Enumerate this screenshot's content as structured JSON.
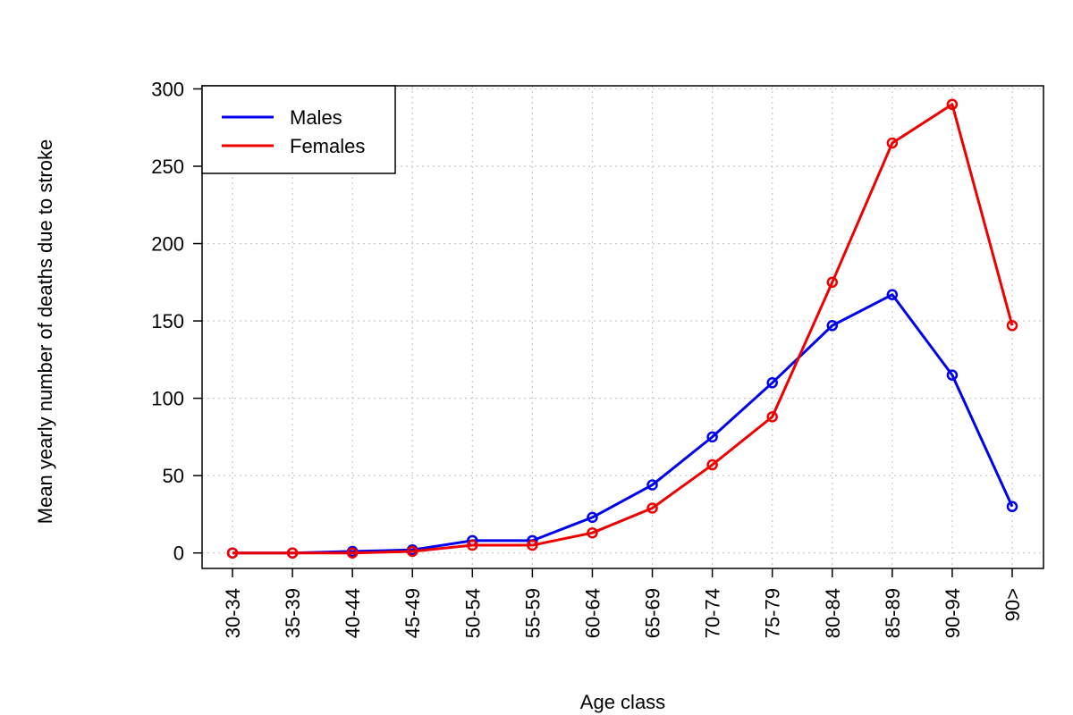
{
  "chart_data": {
    "type": "line",
    "title": "",
    "xlabel": "Age class",
    "ylabel": "Mean yearly number of deaths due to stroke",
    "categories": [
      "30-34",
      "35-39",
      "40-44",
      "45-49",
      "50-54",
      "55-59",
      "60-64",
      "65-69",
      "70-74",
      "75-79",
      "80-84",
      "85-89",
      "90-94",
      "90>"
    ],
    "ylim": [
      -10,
      302
    ],
    "yticks": [
      0,
      50,
      100,
      150,
      200,
      250,
      300
    ],
    "grid": true,
    "legend": "top-left",
    "series": [
      {
        "name": "Males",
        "color": "#0000ee",
        "values": [
          0,
          0,
          1,
          2,
          8,
          8,
          23,
          44,
          75,
          110,
          147,
          167,
          115,
          30
        ]
      },
      {
        "name": "Females",
        "color": "#ee0000",
        "values": [
          0,
          0,
          0,
          1,
          5,
          5,
          13,
          29,
          57,
          88,
          175,
          265,
          290,
          147
        ]
      }
    ]
  }
}
